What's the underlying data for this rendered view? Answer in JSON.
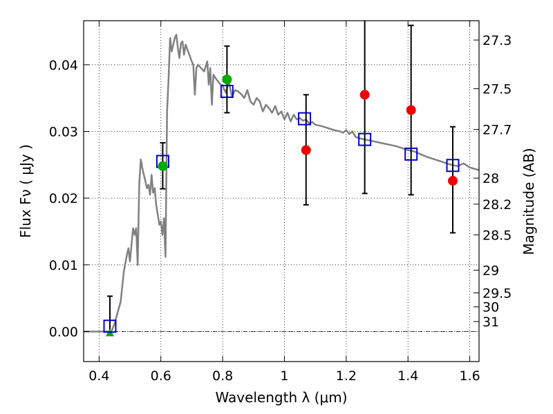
{
  "chart_data": {
    "type": "scatter",
    "xlabel": "Wavelength  λ (μm)",
    "ylabel": "Flux  Fν ( μJy )",
    "y2label": "Magnitude (AB)",
    "xlim": [
      0.35,
      1.63
    ],
    "ylim": [
      -0.0045,
      0.0466
    ],
    "x_ticks": [
      0.4,
      0.6,
      0.8,
      1.0,
      1.2,
      1.4,
      1.6
    ],
    "x_tick_labels": [
      "0.4",
      "0.6",
      "0.8",
      "1",
      "1.2",
      "1.4",
      "1.6"
    ],
    "y_ticks": [
      0.0,
      0.01,
      0.02,
      0.03,
      0.04
    ],
    "y_tick_labels": [
      "0.00",
      "0.01",
      "0.02",
      "0.03",
      "0.04"
    ],
    "y2_ticks": [
      {
        "label": "27.3",
        "flux": 0.0437
      },
      {
        "label": "27.5",
        "flux": 0.0364
      },
      {
        "label": "27.7",
        "flux": 0.0303
      },
      {
        "label": "28",
        "flux": 0.023
      },
      {
        "label": "28.2",
        "flux": 0.0191
      },
      {
        "label": "28.5",
        "flux": 0.0145
      },
      {
        "label": "29",
        "flux": 0.0092
      },
      {
        "label": "29.5",
        "flux": 0.0058
      },
      {
        "label": "30",
        "flux": 0.0037
      },
      {
        "label": "31",
        "flux": 0.0015
      }
    ],
    "grid": true,
    "series": [
      {
        "kind": "model-spectrum",
        "color": "#808080",
        "x": [
          0.35,
          0.4,
          0.44,
          0.45,
          0.47,
          0.48,
          0.49,
          0.495,
          0.5,
          0.51,
          0.515,
          0.52,
          0.525,
          0.53,
          0.535,
          0.54,
          0.545,
          0.55,
          0.555,
          0.56,
          0.565,
          0.57,
          0.575,
          0.58,
          0.585,
          0.59,
          0.595,
          0.6,
          0.605,
          0.61,
          0.615,
          0.62,
          0.625,
          0.63,
          0.635,
          0.64,
          0.645,
          0.65,
          0.655,
          0.66,
          0.665,
          0.67,
          0.675,
          0.68,
          0.69,
          0.7,
          0.705,
          0.71,
          0.715,
          0.72,
          0.73,
          0.74,
          0.75,
          0.755,
          0.76,
          0.765,
          0.77,
          0.78,
          0.79,
          0.8,
          0.81,
          0.82,
          0.83,
          0.84,
          0.85,
          0.86,
          0.87,
          0.88,
          0.89,
          0.9,
          0.91,
          0.92,
          0.93,
          0.94,
          0.95,
          0.96,
          0.97,
          0.98,
          0.99,
          1.0,
          1.01,
          1.02,
          1.03,
          1.04,
          1.05,
          1.06,
          1.07,
          1.08,
          1.09,
          1.1,
          1.12,
          1.14,
          1.16,
          1.18,
          1.19,
          1.2,
          1.21,
          1.22,
          1.23,
          1.24,
          1.26,
          1.28,
          1.3,
          1.32,
          1.34,
          1.36,
          1.38,
          1.4,
          1.42,
          1.44,
          1.46,
          1.48,
          1.5,
          1.52,
          1.54,
          1.56,
          1.58,
          1.6,
          1.63
        ],
        "y": [
          0.0,
          0.0,
          0.0,
          0.0012,
          0.0045,
          0.009,
          0.0115,
          0.0125,
          0.0105,
          0.0155,
          0.0145,
          0.0155,
          0.01,
          0.022,
          0.0258,
          0.0245,
          0.0235,
          0.0225,
          0.0215,
          0.022,
          0.0205,
          0.0235,
          0.0208,
          0.0215,
          0.019,
          0.0175,
          0.016,
          0.0165,
          0.0145,
          0.017,
          0.0112,
          0.033,
          0.038,
          0.044,
          0.042,
          0.043,
          0.044,
          0.0445,
          0.0425,
          0.041,
          0.0432,
          0.0435,
          0.0415,
          0.043,
          0.0418,
          0.0405,
          0.04,
          0.0355,
          0.0395,
          0.04,
          0.0395,
          0.039,
          0.0405,
          0.037,
          0.0395,
          0.034,
          0.0385,
          0.0378,
          0.0372,
          0.0368,
          0.0358,
          0.0375,
          0.0352,
          0.0362,
          0.036,
          0.0356,
          0.035,
          0.0362,
          0.0345,
          0.034,
          0.035,
          0.0345,
          0.033,
          0.034,
          0.0335,
          0.0328,
          0.0338,
          0.0325,
          0.033,
          0.0318,
          0.0328,
          0.0315,
          0.0325,
          0.0318,
          0.032,
          0.0316,
          0.0318,
          0.0312,
          0.0314,
          0.031,
          0.0308,
          0.0305,
          0.0302,
          0.03,
          0.0298,
          0.0302,
          0.0296,
          0.03,
          0.0292,
          0.029,
          0.0288,
          0.0286,
          0.0284,
          0.0282,
          0.028,
          0.0278,
          0.0275,
          0.0272,
          0.027,
          0.0266,
          0.0262,
          0.0259,
          0.0256,
          0.0253,
          0.025,
          0.0248,
          0.0252,
          0.0246,
          0.0242
        ]
      },
      {
        "kind": "model-photometry",
        "marker": "square",
        "color": "#0000cc",
        "x": [
          0.435,
          0.606,
          0.814,
          1.065,
          1.26,
          1.41,
          1.545
        ],
        "y": [
          0.0008,
          0.0255,
          0.036,
          0.0319,
          0.0288,
          0.0266,
          0.0249
        ]
      },
      {
        "kind": "observed-green",
        "marker": "circle",
        "color": "#00aa00",
        "x": [
          0.606,
          0.814
        ],
        "y": [
          0.0248,
          0.0378
        ],
        "err_low": [
          0.0034,
          0.005
        ],
        "err_high": [
          0.0035,
          0.005
        ]
      },
      {
        "kind": "observed-red",
        "marker": "circle",
        "color": "#ee0000",
        "x": [
          1.07,
          1.26,
          1.41,
          1.545
        ],
        "y": [
          0.0272,
          0.0355,
          0.0332,
          0.0226
        ],
        "err_low": [
          0.0082,
          0.0148,
          0.0127,
          0.0078
        ],
        "err_high": [
          0.0083,
          0.0125,
          0.0127,
          0.0081
        ]
      },
      {
        "kind": "upper-limit",
        "marker": "triangle",
        "color": "#00aa00",
        "x": [
          0.435
        ],
        "y": [
          -0.0002
        ],
        "err_high": [
          0.0055
        ]
      }
    ]
  }
}
